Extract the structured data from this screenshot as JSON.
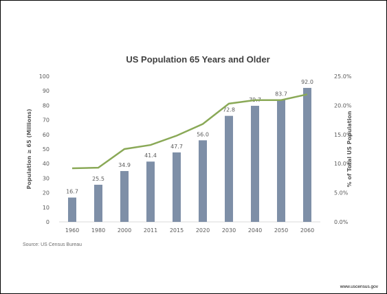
{
  "footer": {
    "url": "www.uscensus.gov"
  },
  "source": "Source: US Census Bureau",
  "colors": {
    "bar": "#7e8fa7",
    "line": "#8aa957",
    "text": "#595959",
    "title": "#404040"
  },
  "chart_data": {
    "type": "bar",
    "title": "US Population 65 Years and Older",
    "xlabel": "",
    "ylabel": "Population ≥ 65 (Millions)",
    "y2label": "% of Total US Population",
    "categories": [
      "1960",
      "1980",
      "2000",
      "2011",
      "2015",
      "2020",
      "2030",
      "2040",
      "2050",
      "2060"
    ],
    "ylim": [
      0,
      100
    ],
    "yticks": [
      "0",
      "10",
      "20",
      "30",
      "40",
      "50",
      "60",
      "70",
      "80",
      "90",
      "100"
    ],
    "y2lim": [
      0,
      25
    ],
    "y2ticks": [
      "0.0%",
      "5.0%",
      "10.0%",
      "15.0%",
      "20.0%",
      "25.0%"
    ],
    "grid": false,
    "series": [
      {
        "type": "bar",
        "axis": "left",
        "values": [
          16.7,
          25.5,
          34.9,
          41.4,
          47.7,
          56.0,
          72.8,
          79.7,
          83.7,
          92.0
        ],
        "labels": [
          "16.7",
          "25.5",
          "34.9",
          "41.4",
          "47.7",
          "56.0",
          "72.8",
          "79.7",
          "83.7",
          "92.0"
        ]
      },
      {
        "type": "line",
        "axis": "right",
        "values": [
          9.2,
          9.3,
          12.5,
          13.2,
          14.8,
          16.8,
          20.3,
          20.9,
          20.9,
          21.9
        ]
      }
    ]
  }
}
